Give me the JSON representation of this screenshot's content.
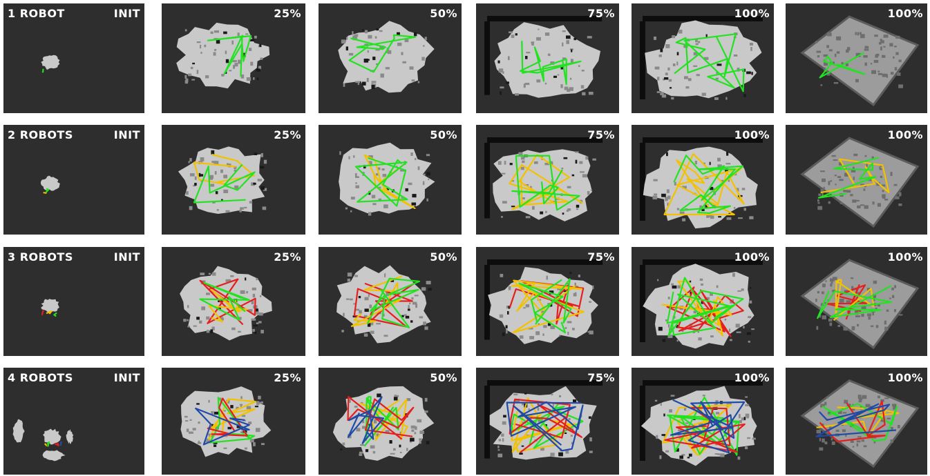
{
  "rows": [
    {
      "robots": "1 ROBOT",
      "init": "INIT",
      "stages": [
        "25%",
        "50%",
        "75%",
        "100%",
        "100%"
      ],
      "trajectories": [
        "green"
      ]
    },
    {
      "robots": "2 ROBOTS",
      "init": "INIT",
      "stages": [
        "25%",
        "50%",
        "75%",
        "100%",
        "100%"
      ],
      "trajectories": [
        "yellow",
        "green"
      ]
    },
    {
      "robots": "3 ROBOTS",
      "init": "INIT",
      "stages": [
        "25%",
        "50%",
        "75%",
        "100%",
        "100%"
      ],
      "trajectories": [
        "red",
        "yellow",
        "green"
      ]
    },
    {
      "robots": "4 ROBOTS",
      "init": "INIT",
      "stages": [
        "25%",
        "50%",
        "75%",
        "100%",
        "100%"
      ],
      "trajectories": [
        "yellow",
        "green",
        "red",
        "blue"
      ]
    }
  ],
  "colors": {
    "panel_bg": "#2e2e2e",
    "map": "#c9c9c9",
    "map_shade": "#8a8a8a",
    "walls": "#0d0d0d",
    "green": "#22e222",
    "yellow": "#f2c200",
    "red": "#e61e1e",
    "blue": "#1f4aa8"
  }
}
